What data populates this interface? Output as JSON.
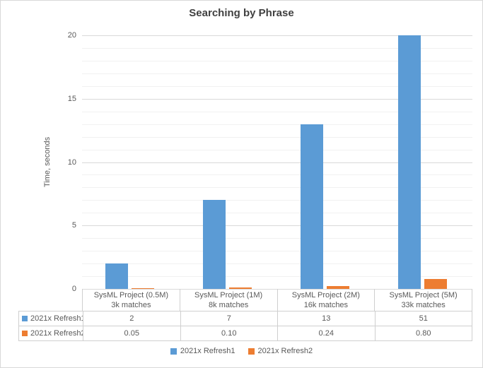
{
  "title": "Searching by Phrase",
  "chart_data": {
    "type": "bar",
    "title": "Searching by Phrase",
    "xlabel": "",
    "ylabel": "Time, seconds",
    "ylim": [
      0,
      20
    ],
    "y_major_ticks": [
      0,
      5,
      10,
      15,
      20
    ],
    "y_minor_step": 1,
    "y_major_step": 5,
    "grid": true,
    "legend_position": "bottom",
    "data_table_shown": true,
    "categories": [
      {
        "label": "SysML Project (0.5M)",
        "sublabel": "3k matches"
      },
      {
        "label": "SysML Project (1M)",
        "sublabel": "8k matches"
      },
      {
        "label": "SysML Project (2M)",
        "sublabel": "16k matches"
      },
      {
        "label": "SysML Project (5M)",
        "sublabel": "33k matches"
      }
    ],
    "series": [
      {
        "name": "2021x Refresh1",
        "color": "#5B9BD5",
        "values": [
          2,
          7,
          13,
          51
        ],
        "display_values": [
          "2",
          "7",
          "13",
          "51"
        ]
      },
      {
        "name": "2021x Refresh2",
        "color": "#ED7D31",
        "values": [
          0.05,
          0.1,
          0.24,
          0.8
        ],
        "display_values": [
          "0.05",
          "0.10",
          "0.24",
          "0.80"
        ]
      }
    ],
    "colors": {
      "title_text": "#404040",
      "axis_text": "#595959",
      "major_gridline": "#d9d9d9",
      "minor_gridline": "#f1f1f1",
      "table_border": "#cfcfcf",
      "outer_border": "#d9d9d9"
    }
  }
}
